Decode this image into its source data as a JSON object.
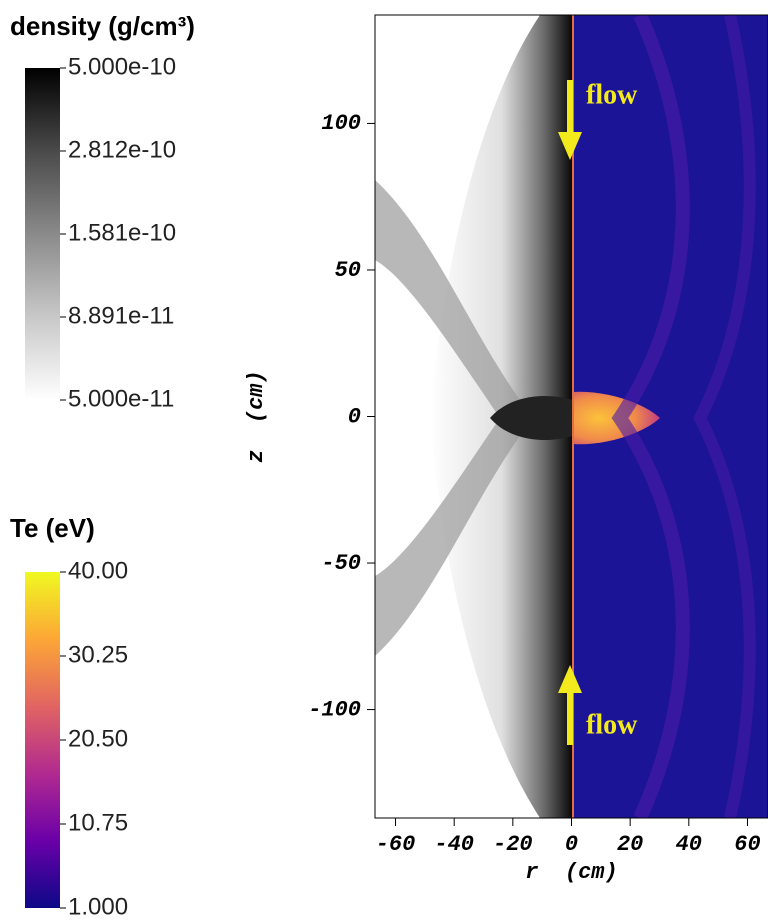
{
  "chart_data": {
    "type": "field",
    "x_label": "r  (cm)",
    "y_label": "z  (cm)",
    "xlim": [
      -67,
      67
    ],
    "ylim": [
      -137,
      137
    ],
    "xticks": [
      -60,
      -40,
      -20,
      0,
      20,
      40,
      60
    ],
    "yticks": [
      -100,
      -50,
      0,
      50,
      100
    ],
    "annotations": [
      {
        "text": "flow"
      },
      {
        "text": "flow"
      }
    ],
    "colorbars": [
      {
        "title": "density (g/cm³)",
        "log_scale": true,
        "lim": [
          5e-11,
          5e-10
        ],
        "colors": [
          "#ffffff",
          "#c8c8c8",
          "#8a8a8a",
          "#4a4a4a",
          "#000000"
        ],
        "ticks": [
          {
            "value": 5e-10,
            "label": "5.000e-10"
          },
          {
            "value": 2.812e-10,
            "label": "2.812e-10"
          },
          {
            "value": 1.581e-10,
            "label": "1.581e-10"
          },
          {
            "value": 8.891e-11,
            "label": "8.891e-11"
          },
          {
            "value": 5e-11,
            "label": "5.000e-11"
          }
        ]
      },
      {
        "title": "Te (eV)",
        "log_scale": false,
        "lim": [
          1,
          40
        ],
        "colors": [
          "#0d0887",
          "#6a00a8",
          "#b12a90",
          "#e16462",
          "#fca636",
          "#f0f921"
        ],
        "ticks": [
          {
            "value": 40,
            "label": "40.00"
          },
          30.25,
          {
            "value": 20.5,
            "label": "20.50"
          },
          10.75,
          {
            "value": 1,
            "label": "1.000"
          }
        ]
      }
    ]
  }
}
